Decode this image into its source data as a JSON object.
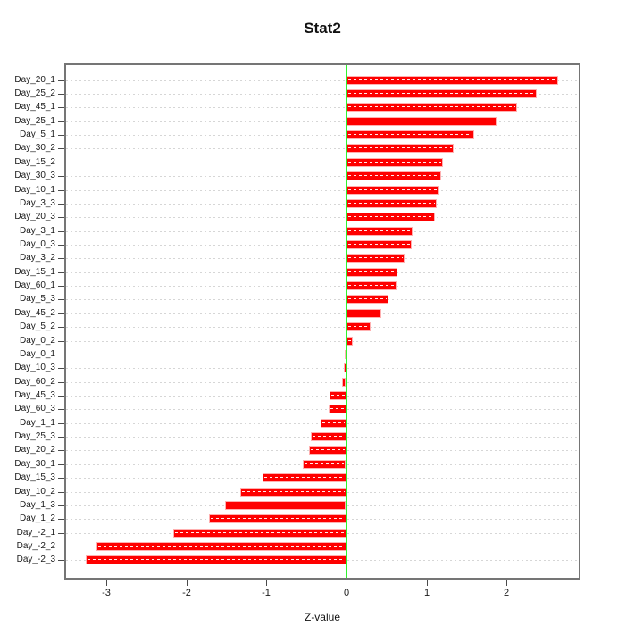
{
  "figure": {
    "title": "Stat2"
  },
  "chart_data": {
    "type": "bar",
    "orientation": "horizontal",
    "title": "Stat2",
    "xlabel": "Z-value",
    "ylabel": "",
    "xlim": [
      -3.5,
      2.9
    ],
    "xticks": [
      -3,
      -2,
      -1,
      0,
      1,
      2
    ],
    "grid": "dotted horizontal line per category, full plot width",
    "zero_line_at": 0,
    "legend": "none",
    "categories": [
      "Day_20_1",
      "Day_25_2",
      "Day_45_1",
      "Day_25_1",
      "Day_5_1",
      "Day_30_2",
      "Day_15_2",
      "Day_30_3",
      "Day_10_1",
      "Day_3_3",
      "Day_20_3",
      "Day_3_1",
      "Day_0_3",
      "Day_3_2",
      "Day_15_1",
      "Day_60_1",
      "Day_5_3",
      "Day_45_2",
      "Day_5_2",
      "Day_0_2",
      "Day_0_1",
      "Day_10_3",
      "Day_60_2",
      "Day_45_3",
      "Day_60_3",
      "Day_1_1",
      "Day_25_3",
      "Day_20_2",
      "Day_30_1",
      "Day_15_3",
      "Day_10_2",
      "Day_1_3",
      "Day_1_2",
      "Day_-2_1",
      "Day_-2_2",
      "Day_-2_3"
    ],
    "values": [
      2.64,
      2.38,
      2.13,
      1.87,
      1.59,
      1.34,
      1.2,
      1.18,
      1.16,
      1.13,
      1.1,
      0.83,
      0.81,
      0.73,
      0.64,
      0.62,
      0.52,
      0.43,
      0.3,
      0.08,
      -0.02,
      -0.03,
      -0.05,
      -0.21,
      -0.22,
      -0.32,
      -0.45,
      -0.47,
      -0.54,
      -1.05,
      -1.33,
      -1.51,
      -1.72,
      -2.16,
      -3.12,
      -3.26
    ],
    "colors": {
      "bar_fill": "#FE0000",
      "bar_border": "#FFB0B0",
      "bar_inner_dash": "#FFFFFF",
      "zero_line": "#2EF22E",
      "grid": "#D6D6D6",
      "box": "#757575",
      "tick": "#4A4A4A",
      "text": "#1A1A1A"
    }
  }
}
